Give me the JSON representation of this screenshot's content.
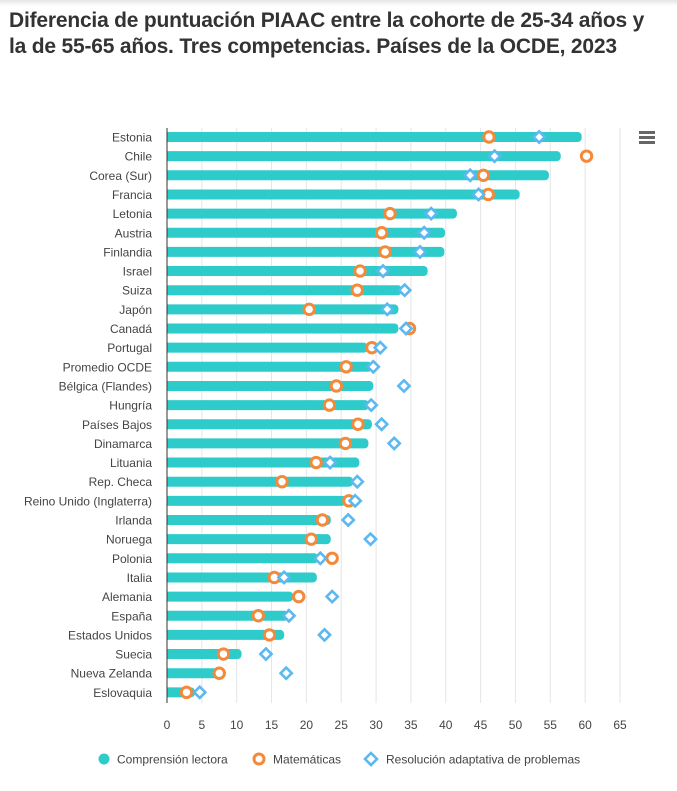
{
  "title": "Diferencia de puntuación PIAAC entre la cohorte de 25-34 años y la de 55-65 años. Tres competencias. Países de la OCDE, 2023",
  "menu_icon": "hamburger-menu-icon",
  "colors": {
    "lectora": "#2ecbcb",
    "matematicas": "#f4893a",
    "resolucion": "#5cb8f0",
    "grid": "#e6e6e6",
    "axis": "#333333",
    "text": "#444444"
  },
  "legend": [
    {
      "label": "Comprensión lectora",
      "icon": "filled-circle-icon"
    },
    {
      "label": "Matemáticas",
      "icon": "ring-icon"
    },
    {
      "label": "Resolución adaptativa de problemas",
      "icon": "diamond-icon"
    }
  ],
  "chart_data": {
    "type": "bar",
    "orientation": "horizontal",
    "title": "Diferencia de puntuación PIAAC entre la cohorte de 25-34 años y la de 55-65 años. Tres competencias. Países de la OCDE, 2023",
    "xlabel": "",
    "ylabel": "",
    "xlim": [
      0,
      65
    ],
    "xticks": [
      0,
      5,
      10,
      15,
      20,
      25,
      30,
      35,
      40,
      45,
      50,
      55,
      60,
      65
    ],
    "grid": true,
    "legend_position": "bottom",
    "categories": [
      "Estonia",
      "Chile",
      "Corea (Sur)",
      "Francia",
      "Letonia",
      "Austria",
      "Finlandia",
      "Israel",
      "Suiza",
      "Japón",
      "Canadá",
      "Portugal",
      "Promedio OCDE",
      "Bélgica (Flandes)",
      "Hungría",
      "Países Bajos",
      "Dinamarca",
      "Lituania",
      "Rep. Checa",
      "Reino Unido (Inglaterra)",
      "Irlanda",
      "Noruega",
      "Polonia",
      "Italia",
      "Alemania",
      "España",
      "Estados Unidos",
      "Suecia",
      "Nueva Zelanda",
      "Eslovaquia"
    ],
    "series": [
      {
        "name": "Comprensión lectora",
        "mark": "bar",
        "values": [
          59.5,
          56.5,
          54.8,
          50.6,
          41.6,
          39.9,
          39.8,
          37.4,
          33.7,
          33.2,
          33.2,
          28.8,
          29.4,
          29.6,
          29.0,
          29.4,
          28.9,
          27.6,
          26.7,
          25.7,
          23.5,
          23.5,
          21.7,
          21.5,
          18.1,
          17.4,
          16.8,
          10.7,
          7.3,
          4.0
        ]
      },
      {
        "name": "Matemáticas",
        "mark": "ring",
        "values": [
          46.2,
          60.2,
          45.4,
          46.1,
          32.0,
          30.8,
          31.3,
          27.7,
          27.3,
          20.4,
          34.8,
          29.4,
          25.7,
          24.3,
          23.3,
          27.4,
          25.6,
          21.4,
          16.5,
          26.1,
          22.3,
          20.7,
          23.7,
          15.4,
          18.9,
          13.1,
          14.7,
          8.1,
          7.5,
          2.8
        ]
      },
      {
        "name": "Resolución adaptativa de problemas",
        "mark": "diamond",
        "values": [
          53.4,
          47.0,
          43.5,
          44.7,
          37.9,
          36.9,
          36.3,
          31.0,
          34.1,
          31.6,
          34.3,
          30.6,
          29.6,
          34.0,
          29.3,
          30.8,
          32.6,
          23.4,
          27.3,
          27.0,
          26.0,
          29.2,
          22.0,
          16.8,
          23.7,
          17.5,
          22.6,
          14.2,
          17.1,
          4.7
        ]
      }
    ]
  }
}
